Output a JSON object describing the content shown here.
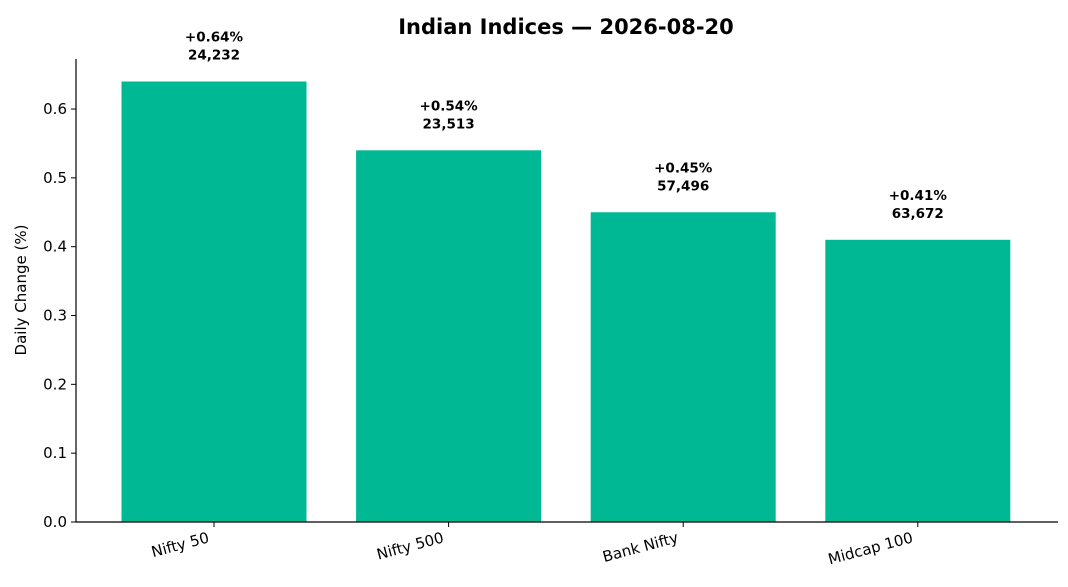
{
  "chart_data": {
    "type": "bar",
    "title": "Indian Indices — 2026-08-20",
    "xlabel": "",
    "ylabel": "Daily Change (%)",
    "ylim": [
      0,
      0.68
    ],
    "yticks": [
      0.0,
      0.1,
      0.2,
      0.3,
      0.4,
      0.5,
      0.6
    ],
    "ytick_labels": [
      "0.0",
      "0.1",
      "0.2",
      "0.3",
      "0.4",
      "0.5",
      "0.6"
    ],
    "grid": false,
    "bar_color": "#00B894",
    "categories": [
      "Nifty 50",
      "Nifty 500",
      "Bank Nifty",
      "Midcap 100"
    ],
    "values": [
      0.64,
      0.54,
      0.45,
      0.41
    ],
    "change_labels": [
      "+0.64%",
      "+0.54%",
      "+0.45%",
      "+0.41%"
    ],
    "level_labels": [
      "24,232",
      "23,513",
      "57,496",
      "63,672"
    ]
  }
}
